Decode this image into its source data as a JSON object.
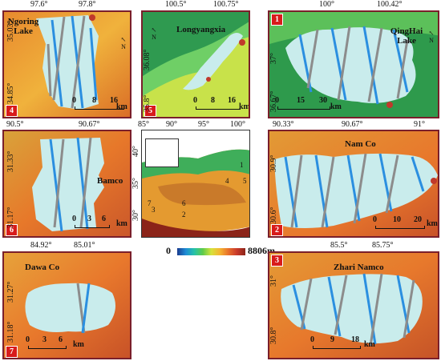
{
  "panels": [
    {
      "id": "4",
      "name": "Ngoring Lake",
      "lon_ticks": [
        "97.6°",
        "97.8°"
      ],
      "lat_ticks": [
        "35.03°",
        "34.85°"
      ],
      "scale": [
        "0",
        "8",
        "16",
        "km"
      ]
    },
    {
      "id": "5",
      "name": "Longyangxia",
      "lon_ticks": [
        "100.5°",
        "100.75°"
      ],
      "lat_ticks": [
        "36.08°",
        "35.8°"
      ],
      "scale": [
        "0",
        "8",
        "16",
        "km"
      ]
    },
    {
      "id": "1",
      "name": "QingHai Lake",
      "lon_ticks": [
        "100°",
        "100.42°"
      ],
      "lat_ticks": [
        "37°",
        "36.67°"
      ],
      "scale": [
        "0",
        "15",
        "30",
        "km"
      ]
    },
    {
      "id": "6",
      "name": "Bamco",
      "lon_ticks": [
        "90.5°",
        "90.67°"
      ],
      "lat_ticks": [
        "31.33°",
        "31.17°"
      ],
      "scale": [
        "0",
        "3",
        "6",
        "km"
      ]
    },
    {
      "id": "2",
      "name": "Nam Co",
      "lon_ticks": [
        "90.33°",
        "90.67°",
        "91°"
      ],
      "lat_ticks": [
        "30.9°",
        "30.6°"
      ],
      "scale": [
        "0",
        "10",
        "20",
        "km"
      ]
    },
    {
      "id": "7",
      "name": "Dawa Co",
      "lon_ticks": [
        "84.92°",
        "85.01°"
      ],
      "lat_ticks": [
        "31.27°",
        "31.18°"
      ],
      "scale": [
        "0",
        "3",
        "6",
        "km"
      ]
    },
    {
      "id": "3",
      "name": "Zhari Namco",
      "lon_ticks": [
        "85.5°",
        "85.75°"
      ],
      "lat_ticks": [
        "31°",
        "30.8°"
      ],
      "scale": [
        "0",
        "9",
        "18",
        "km"
      ]
    }
  ],
  "overview": {
    "lon_ticks": [
      "85°",
      "90°",
      "95°",
      "100°"
    ],
    "lat_ticks": [
      "40°",
      "35°",
      "30°"
    ],
    "site_numbers": [
      "1",
      "2",
      "3",
      "4",
      "5",
      "6",
      "7"
    ]
  },
  "colorbar": {
    "min": "0",
    "max": "8806m"
  },
  "north_label": "N",
  "colors": {
    "frame": "#7a1f2b",
    "badge": "#d81b1b",
    "water": "#c9ecec",
    "track_blue": "#2b8fe0",
    "track_gray": "#8c8c8c"
  }
}
